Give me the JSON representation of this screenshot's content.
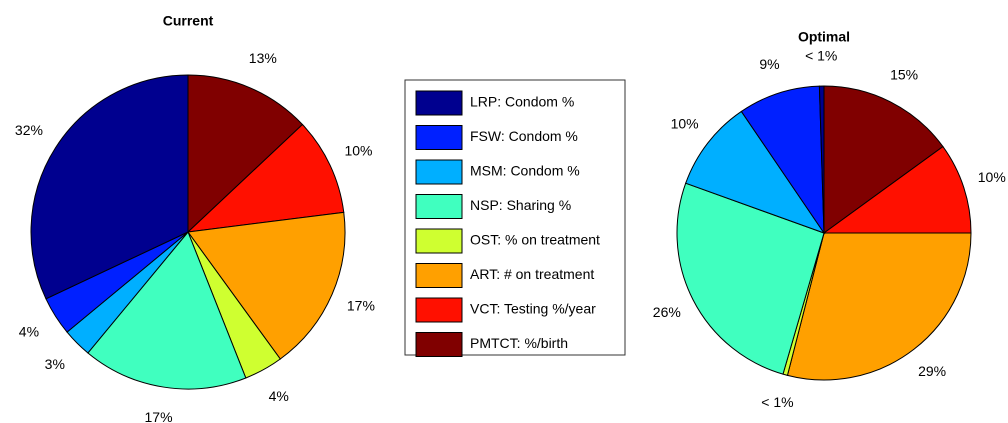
{
  "chart_data": [
    {
      "type": "pie",
      "title": "Current",
      "categories": [
        "LRP: Condom %",
        "FSW: Condom %",
        "MSM: Condom %",
        "NSP: Sharing %",
        "OST: % on treatment",
        "ART: # on treatment",
        "VCT: Testing %/year",
        "PMTCT: %/birth"
      ],
      "values": [
        32,
        4,
        3,
        17,
        4,
        17,
        10,
        13
      ],
      "value_labels": [
        "32%",
        "4%",
        "3%",
        "17%",
        "4%",
        "17%",
        "10%",
        "13%"
      ],
      "colors": [
        "#00008f",
        "#0020ff",
        "#00afff",
        "#40ffbf",
        "#cfff30",
        "#ffa000",
        "#ff1000",
        "#800000"
      ]
    },
    {
      "type": "pie",
      "title": "Optimal",
      "categories": [
        "LRP: Condom %",
        "FSW: Condom %",
        "MSM: Condom %",
        "NSP: Sharing %",
        "OST: % on treatment",
        "ART: # on treatment",
        "VCT: Testing %/year",
        "PMTCT: %/birth"
      ],
      "values": [
        0.5,
        9,
        10,
        26,
        0.5,
        29,
        10,
        15
      ],
      "value_labels": [
        "< 1%",
        "9%",
        "10%",
        "26%",
        "< 1%",
        "29%",
        "10%",
        "15%"
      ],
      "colors": [
        "#00008f",
        "#0020ff",
        "#00afff",
        "#40ffbf",
        "#cfff30",
        "#ffa000",
        "#ff1000",
        "#800000"
      ]
    }
  ]
}
